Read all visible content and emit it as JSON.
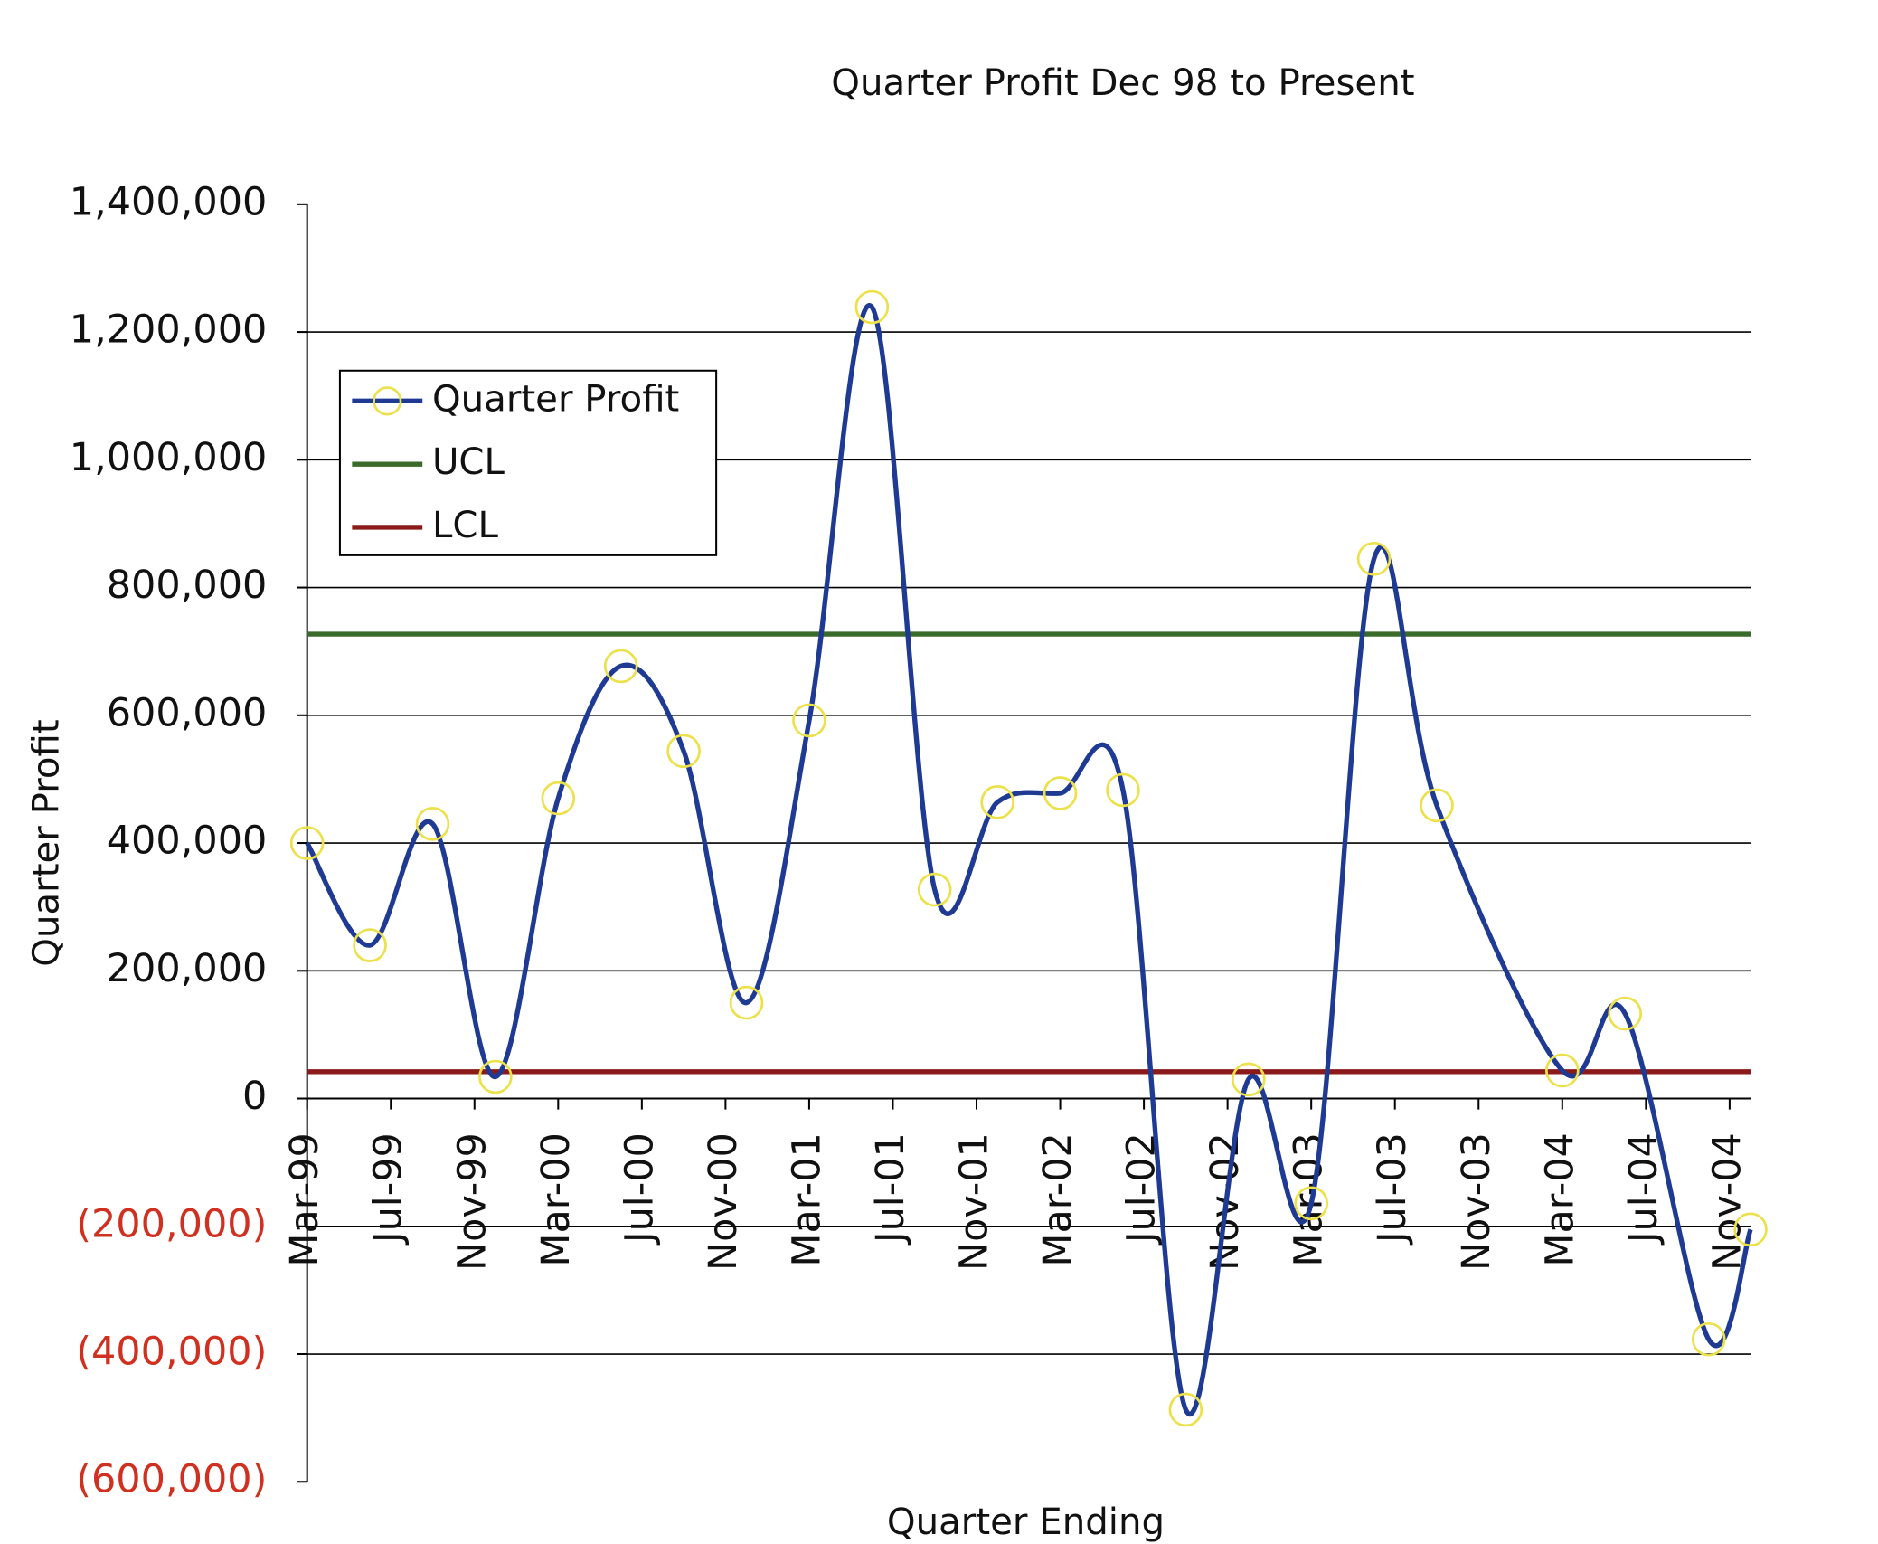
{
  "chart_data": {
    "type": "line",
    "title": "Quarter Profit  Dec 98 to Present",
    "x_label": "Quarter Ending",
    "y_label": "Quarter Profit",
    "x": [
      "Mar-99",
      "Jun-99",
      "Sep-99",
      "Dec-99",
      "Mar-00",
      "Jun-00",
      "Sep-00",
      "Dec-00",
      "Mar-01",
      "Jun-01",
      "Sep-01",
      "Dec-01",
      "Mar-02",
      "Jun-02",
      "Sep-02",
      "Dec-02",
      "Mar-03",
      "Jun-03",
      "Sep-03",
      "Mar-04",
      "Jun-04",
      "Oct-04",
      "Dec-04"
    ],
    "series": [
      {
        "name": "Quarter Profit",
        "color": "#1f3a93",
        "marker_color": "#ece14a",
        "values": [
          400000,
          240000,
          430000,
          34000,
          470000,
          677000,
          544000,
          150000,
          592000,
          1239000,
          327000,
          464000,
          478000,
          483000,
          -487000,
          30000,
          -164000,
          845000,
          459000,
          44000,
          133000,
          -377000,
          -205000
        ]
      }
    ],
    "control_limits": [
      {
        "name": "UCL",
        "color": "#3a6b2a",
        "value": 727000
      },
      {
        "name": "LCL",
        "color": "#8b1a1a",
        "value": 42000
      }
    ],
    "xlim": [
      "Mar-99",
      "Dec-04"
    ],
    "xticks": [
      "Mar-99",
      "Jul-99",
      "Nov-99",
      "Mar-00",
      "Jul-00",
      "Nov-00",
      "Mar-01",
      "Jul-01",
      "Nov-01",
      "Mar-02",
      "Jul-02",
      "Nov-02",
      "Mar-03",
      "Jul-03",
      "Nov-03",
      "Mar-04",
      "Jul-04",
      "Nov-04"
    ],
    "ylim": [
      -600000,
      1400000
    ],
    "yticks": [
      {
        "value": 1400000,
        "label": "1,400,000"
      },
      {
        "value": 1200000,
        "label": "1,200,000"
      },
      {
        "value": 1000000,
        "label": "1,000,000"
      },
      {
        "value": 800000,
        "label": "800,000"
      },
      {
        "value": 600000,
        "label": "600,000"
      },
      {
        "value": 400000,
        "label": "400,000"
      },
      {
        "value": 200000,
        "label": "200,000"
      },
      0,
      {
        "value": -200000,
        "label": "(200,000)"
      },
      {
        "value": -400000,
        "label": "(400,000)"
      },
      {
        "value": -600000,
        "label": "(600,000)"
      }
    ],
    "negative_tick_color": "#d03020",
    "grid": true
  }
}
